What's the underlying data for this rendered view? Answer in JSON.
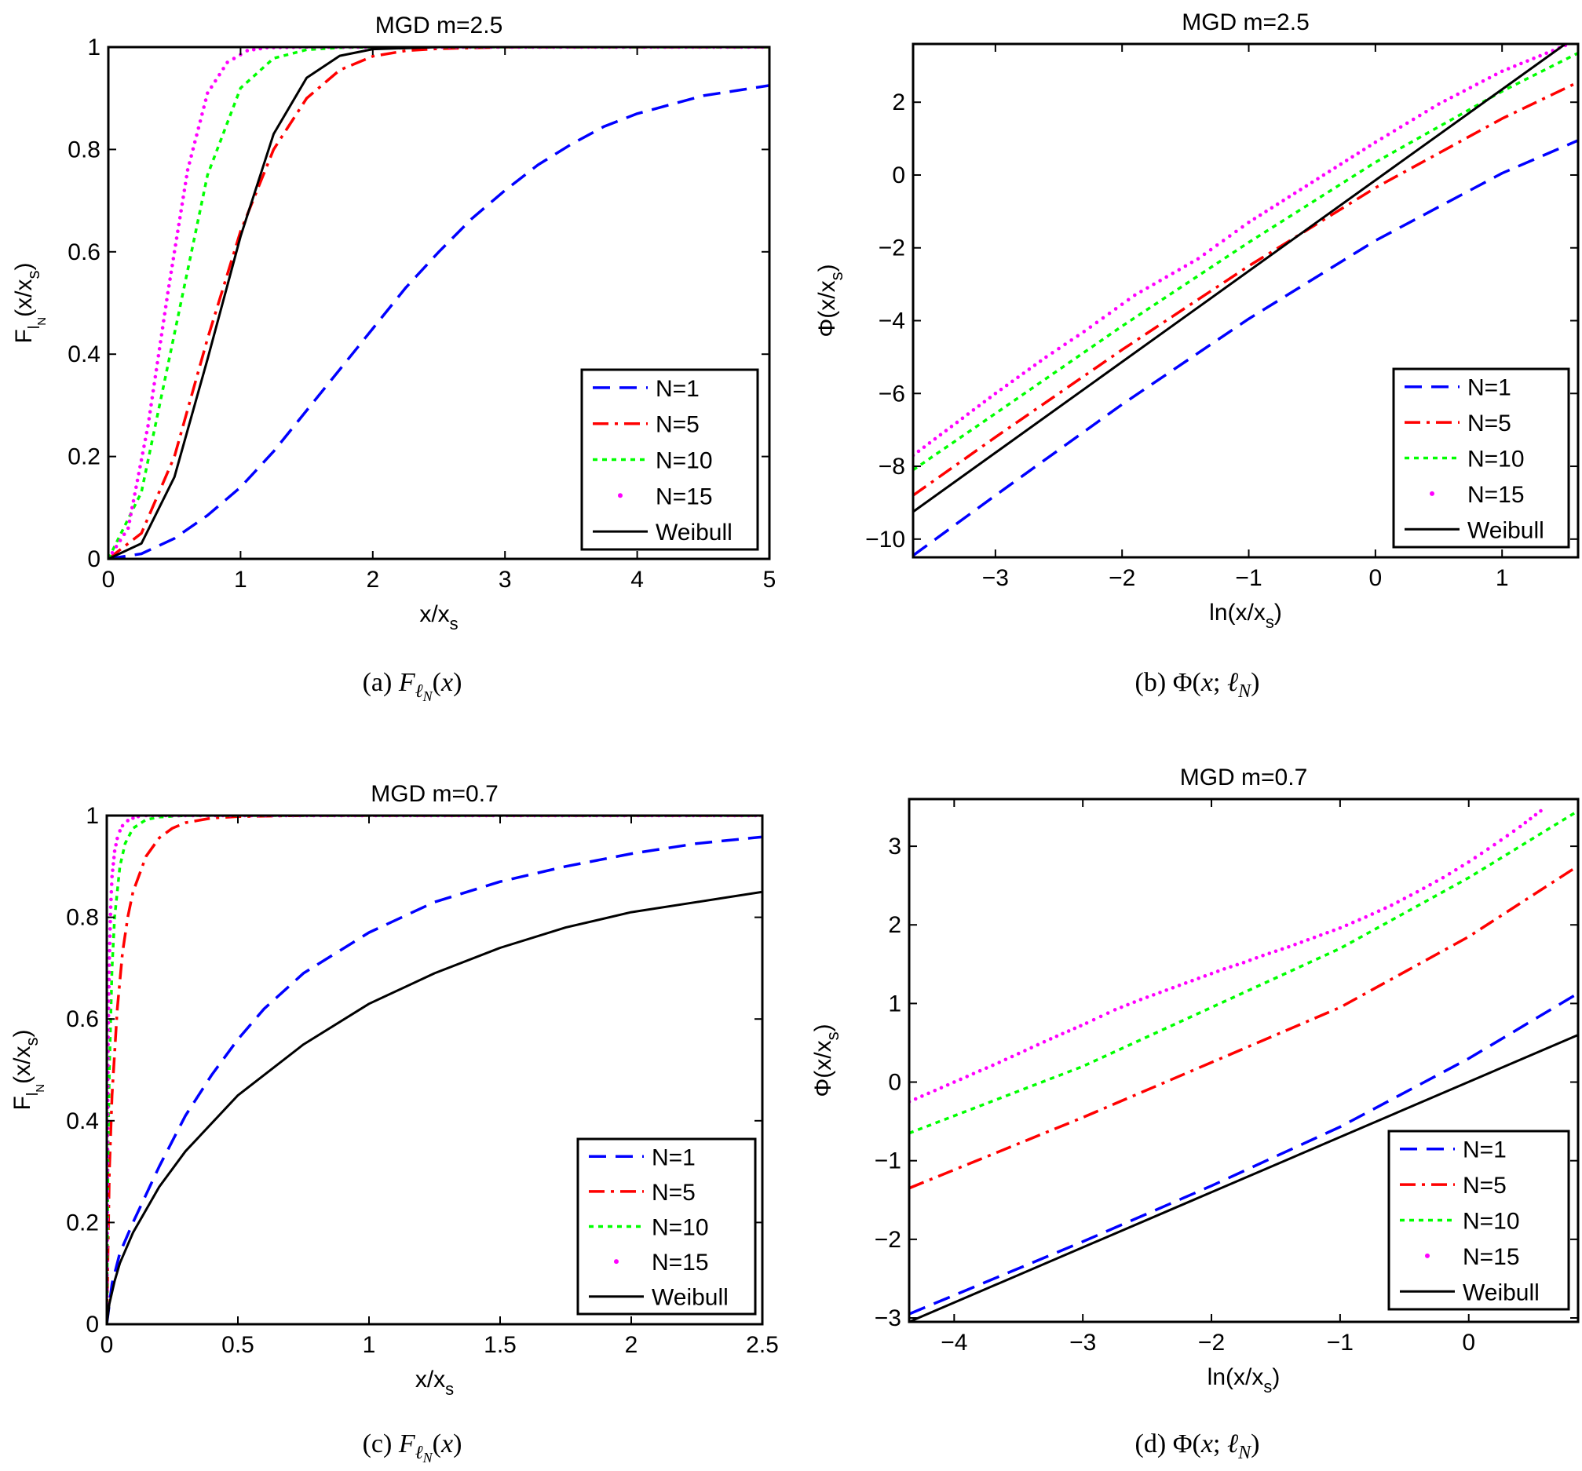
{
  "legend_labels": [
    "N=1",
    "N=5",
    "N=10",
    "N=15",
    "Weibull"
  ],
  "colors": {
    "n1": "#0000ff",
    "n5": "#ff0000",
    "n10": "#00ff00",
    "n15": "#ff00ff",
    "weibull": "#000000"
  },
  "chart_data": [
    {
      "type": "line",
      "title": "MGD m=2.5",
      "xlabel": "x/x_s",
      "ylabel": "F_{l_N}(x/x_s)",
      "caption": "(a)  F_{ℓN}(x)",
      "xlim": [
        0,
        5
      ],
      "ylim": [
        0,
        1
      ],
      "xticks": [
        0,
        1,
        2,
        3,
        4,
        5
      ],
      "yticks": [
        0,
        0.2,
        0.4,
        0.6,
        0.8,
        1
      ],
      "xtick_labels": [
        "0",
        "1",
        "2",
        "3",
        "4",
        "5"
      ],
      "ytick_labels": [
        "0",
        "0.2",
        "0.4",
        "0.6",
        "0.8",
        "1"
      ],
      "legend_position": "bottom-right",
      "series": [
        {
          "name": "N=1",
          "x": [
            0,
            0.25,
            0.5,
            0.75,
            1,
            1.25,
            1.5,
            1.75,
            2,
            2.25,
            2.5,
            2.75,
            3,
            3.25,
            3.5,
            3.75,
            4,
            4.5,
            5
          ],
          "y": [
            0,
            0.01,
            0.04,
            0.085,
            0.14,
            0.21,
            0.29,
            0.37,
            0.45,
            0.53,
            0.6,
            0.665,
            0.72,
            0.77,
            0.81,
            0.845,
            0.87,
            0.905,
            0.925
          ]
        },
        {
          "name": "N=5",
          "x": [
            0,
            0.25,
            0.5,
            0.75,
            1,
            1.25,
            1.5,
            1.75,
            2,
            2.25,
            2.5,
            3,
            3.5,
            4,
            5
          ],
          "y": [
            0,
            0.05,
            0.2,
            0.43,
            0.64,
            0.8,
            0.9,
            0.955,
            0.982,
            0.993,
            0.997,
            1,
            1,
            1,
            1
          ]
        },
        {
          "name": "N=10",
          "x": [
            0,
            0.25,
            0.5,
            0.75,
            1,
            1.25,
            1.5,
            1.75,
            2,
            2.5,
            3,
            4,
            5
          ],
          "y": [
            0,
            0.13,
            0.44,
            0.75,
            0.92,
            0.978,
            0.995,
            0.999,
            1,
            1,
            1,
            1,
            1
          ]
        },
        {
          "name": "N=15",
          "x": [
            0,
            0.15,
            0.3,
            0.45,
            0.6,
            0.75,
            0.9,
            1.05,
            1.2,
            1.5,
            2,
            3,
            4,
            5
          ],
          "y": [
            0,
            0.06,
            0.26,
            0.52,
            0.76,
            0.91,
            0.97,
            0.993,
            0.999,
            1,
            1,
            1,
            1,
            1
          ]
        },
        {
          "name": "Weibull",
          "x": [
            0,
            0.25,
            0.5,
            0.75,
            1,
            1.25,
            1.5,
            1.75,
            2,
            2.5,
            3,
            5
          ],
          "y": [
            0,
            0.03,
            0.16,
            0.39,
            0.63,
            0.83,
            0.94,
            0.983,
            0.996,
            1,
            1,
            1
          ]
        }
      ]
    },
    {
      "type": "line",
      "title": "MGD m=2.5",
      "xlabel": "ln(x/x_s)",
      "ylabel": "Φ(x/x_s)",
      "caption": "(b)  Φ(x; ℓN)",
      "xlim": [
        -3.65,
        1.6
      ],
      "ylim": [
        -10.5,
        3.6
      ],
      "xticks": [
        -3,
        -2,
        -1,
        0,
        1
      ],
      "yticks": [
        -10,
        -8,
        -6,
        -4,
        -2,
        0,
        2
      ],
      "xtick_labels": [
        "−3",
        "−2",
        "−1",
        "0",
        "1"
      ],
      "ytick_labels": [
        "−10",
        "−8",
        "−6",
        "−4",
        "−2",
        "0",
        "2"
      ],
      "legend_position": "bottom-right",
      "series": [
        {
          "name": "N=1",
          "x": [
            -3.65,
            -3,
            -2,
            -1,
            0,
            1,
            1.6
          ],
          "y": [
            -10.45,
            -8.8,
            -6.3,
            -3.95,
            -1.8,
            0.05,
            0.95
          ]
        },
        {
          "name": "N=5",
          "x": [
            -3.65,
            -3,
            -2,
            -1,
            0,
            1,
            1.6
          ],
          "y": [
            -8.8,
            -7.2,
            -4.8,
            -2.5,
            -0.35,
            1.55,
            2.55
          ]
        },
        {
          "name": "N=10",
          "x": [
            -3.65,
            -3,
            -2,
            -1,
            0,
            1,
            1.6
          ],
          "y": [
            -8.1,
            -6.55,
            -4.15,
            -1.85,
            0.35,
            2.3,
            3.35
          ]
        },
        {
          "name": "N=15",
          "x": [
            -3.65,
            -3,
            -2.6,
            -2.3,
            -2.1,
            -1.9,
            -1.7,
            -1.55,
            -1.4,
            -1.2,
            -1,
            -0.5,
            0,
            0.5,
            1,
            1.6
          ],
          "y": [
            -7.7,
            -6,
            -5,
            -4.3,
            -3.8,
            -3.3,
            -2.9,
            -2.6,
            -2.3,
            -1.8,
            -1.3,
            -0.2,
            0.9,
            1.95,
            2.85,
            3.7
          ]
        },
        {
          "name": "Weibull",
          "x": [
            -3.65,
            1.6
          ],
          "y": [
            -9.25,
            3.85
          ]
        }
      ]
    },
    {
      "type": "line",
      "title": "MGD m=0.7",
      "xlabel": "x/x_s",
      "ylabel": "F_{l_N}(x/x_s)",
      "caption": "(c)  F_{ℓN}(x)",
      "xlim": [
        0,
        2.5
      ],
      "ylim": [
        0,
        1
      ],
      "xticks": [
        0,
        0.5,
        1,
        1.5,
        2,
        2.5
      ],
      "yticks": [
        0,
        0.2,
        0.4,
        0.6,
        0.8,
        1
      ],
      "xtick_labels": [
        "0",
        "0.5",
        "1",
        "1.5",
        "2",
        "2.5"
      ],
      "ytick_labels": [
        "0",
        "0.2",
        "0.4",
        "0.6",
        "0.8",
        "1"
      ],
      "legend_position": "bottom-right",
      "series": [
        {
          "name": "N=1",
          "x": [
            0,
            0.02,
            0.05,
            0.1,
            0.2,
            0.3,
            0.4,
            0.5,
            0.6,
            0.75,
            1,
            1.25,
            1.5,
            1.75,
            2,
            2.25,
            2.5
          ],
          "y": [
            0,
            0.08,
            0.14,
            0.2,
            0.31,
            0.41,
            0.49,
            0.56,
            0.62,
            0.69,
            0.77,
            0.83,
            0.87,
            0.9,
            0.925,
            0.945,
            0.958
          ]
        },
        {
          "name": "N=5",
          "x": [
            0,
            0.01,
            0.02,
            0.04,
            0.06,
            0.08,
            0.1,
            0.15,
            0.2,
            0.25,
            0.3,
            0.4,
            0.5,
            0.75,
            1,
            2.5
          ],
          "y": [
            0,
            0.3,
            0.45,
            0.62,
            0.73,
            0.8,
            0.85,
            0.92,
            0.956,
            0.975,
            0.986,
            0.995,
            0.998,
            1,
            1,
            1
          ]
        },
        {
          "name": "N=10",
          "x": [
            0,
            0.005,
            0.01,
            0.02,
            0.03,
            0.05,
            0.07,
            0.1,
            0.15,
            0.2,
            0.3,
            0.5,
            1,
            2.5
          ],
          "y": [
            0,
            0.35,
            0.5,
            0.7,
            0.8,
            0.9,
            0.945,
            0.975,
            0.992,
            0.997,
            1,
            1,
            1,
            1
          ]
        },
        {
          "name": "N=15",
          "x": [
            0,
            0.005,
            0.01,
            0.015,
            0.02,
            0.03,
            0.04,
            0.05,
            0.06,
            0.08,
            0.1,
            0.12,
            0.15,
            0.2,
            0.3,
            0.5,
            1,
            1.5,
            2,
            2.5
          ],
          "y": [
            0,
            0.55,
            0.72,
            0.82,
            0.88,
            0.93,
            0.955,
            0.97,
            0.98,
            0.99,
            0.995,
            0.998,
            1,
            1,
            1,
            1,
            1,
            1,
            1,
            1
          ]
        },
        {
          "name": "Weibull",
          "x": [
            0,
            0.01,
            0.03,
            0.05,
            0.1,
            0.2,
            0.3,
            0.5,
            0.75,
            1,
            1.25,
            1.5,
            1.75,
            2,
            2.25,
            2.5
          ],
          "y": [
            0,
            0.04,
            0.085,
            0.12,
            0.18,
            0.27,
            0.34,
            0.45,
            0.55,
            0.63,
            0.69,
            0.74,
            0.78,
            0.81,
            0.83,
            0.85
          ]
        }
      ]
    },
    {
      "type": "line",
      "title": "MGD m=0.7",
      "xlabel": "ln(x/x_s)",
      "ylabel": "Φ(x/x_s)",
      "caption": "(d)  Φ(x; ℓN)",
      "xlim": [
        -4.35,
        0.85
      ],
      "ylim": [
        -3.05,
        3.6
      ],
      "xticks": [
        -4,
        -3,
        -2,
        -1,
        0
      ],
      "yticks": [
        -3,
        -2,
        -1,
        0,
        1,
        2,
        3
      ],
      "xtick_labels": [
        "−4",
        "−3",
        "−2",
        "−1",
        "0"
      ],
      "ytick_labels": [
        "−3",
        "−2",
        "−1",
        "0",
        "1",
        "2",
        "3"
      ],
      "legend_position": "bottom-right",
      "series": [
        {
          "name": "N=1",
          "x": [
            -4.35,
            -3,
            -2,
            -1,
            0,
            0.85
          ],
          "y": [
            -2.95,
            -2.03,
            -1.32,
            -0.57,
            0.3,
            1.13
          ]
        },
        {
          "name": "N=5",
          "x": [
            -4.35,
            -3,
            -2,
            -1,
            0,
            0.85
          ],
          "y": [
            -1.35,
            -0.45,
            0.25,
            0.95,
            1.85,
            2.75
          ]
        },
        {
          "name": "N=10",
          "x": [
            -4.35,
            -3,
            -2,
            -1,
            0,
            0.85
          ],
          "y": [
            -0.65,
            0.2,
            0.95,
            1.7,
            2.6,
            3.45
          ]
        },
        {
          "name": "N=15",
          "x": [
            -4.35,
            -3.65,
            -3.25,
            -2.97,
            -2.75,
            -2.55,
            -2.4,
            -2.25,
            -2.1,
            -2,
            -1.9,
            -1.75,
            -1.6,
            -1.4,
            -1.2,
            -1,
            -0.8,
            -0.6,
            -0.4,
            -0.2,
            0,
            0.2,
            0.4,
            0.6
          ],
          "y": [
            -0.25,
            0.25,
            0.55,
            0.75,
            0.92,
            1.05,
            1.14,
            1.23,
            1.32,
            1.38,
            1.44,
            1.52,
            1.61,
            1.72,
            1.84,
            1.96,
            2.1,
            2.25,
            2.42,
            2.6,
            2.8,
            3.02,
            3.25,
            3.5
          ]
        },
        {
          "name": "Weibull",
          "x": [
            -4.35,
            0.85
          ],
          "y": [
            -3.05,
            0.6
          ]
        }
      ]
    }
  ]
}
